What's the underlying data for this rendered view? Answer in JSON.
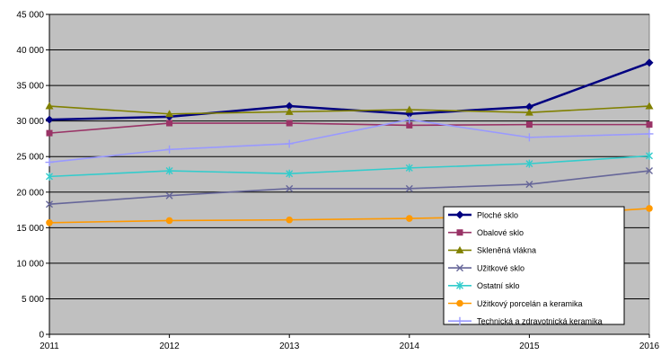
{
  "chart_data": {
    "type": "line",
    "title": "",
    "xlabel": "",
    "ylabel": "",
    "x": [
      "2011",
      "2012",
      "2013",
      "2014",
      "2015",
      "2016"
    ],
    "ylim": [
      0,
      45000
    ],
    "ytick_step": 5000,
    "ytick_labels": [
      "0",
      "5 000",
      "10 000",
      "15 000",
      "20 000",
      "25 000",
      "30 000",
      "35 000",
      "40 000",
      "45 000"
    ],
    "grid": true,
    "plot_background": "#c0c0c0",
    "legend_position": "bottom-right",
    "series": [
      {
        "name": "Ploché sklo",
        "color": "#000080",
        "marker": "diamond",
        "values": [
          30200,
          30600,
          32100,
          31000,
          32000,
          38200
        ]
      },
      {
        "name": "Obalové sklo",
        "color": "#993366",
        "marker": "square",
        "values": [
          28300,
          29700,
          29700,
          29400,
          29500,
          29500
        ]
      },
      {
        "name": "Skleněná vlákna",
        "color": "#808000",
        "marker": "triangle",
        "values": [
          32100,
          31000,
          31300,
          31600,
          31200,
          32100
        ]
      },
      {
        "name": "Užitkové sklo",
        "color": "#666699",
        "marker": "x",
        "values": [
          18300,
          19500,
          20500,
          20500,
          21100,
          23000
        ]
      },
      {
        "name": "Ostatní sklo",
        "color": "#33cccc",
        "marker": "asterisk",
        "values": [
          22200,
          23000,
          22600,
          23400,
          24000,
          25100
        ]
      },
      {
        "name": "Užitkový porcelán a keramika",
        "color": "#ff9900",
        "marker": "circle",
        "values": [
          15700,
          16000,
          16100,
          16300,
          16600,
          17700
        ]
      },
      {
        "name": "Technická a zdravotnická keramika",
        "color": "#9999ff",
        "marker": "plus",
        "values": [
          24200,
          26000,
          26800,
          30200,
          27700,
          28200
        ]
      }
    ]
  }
}
